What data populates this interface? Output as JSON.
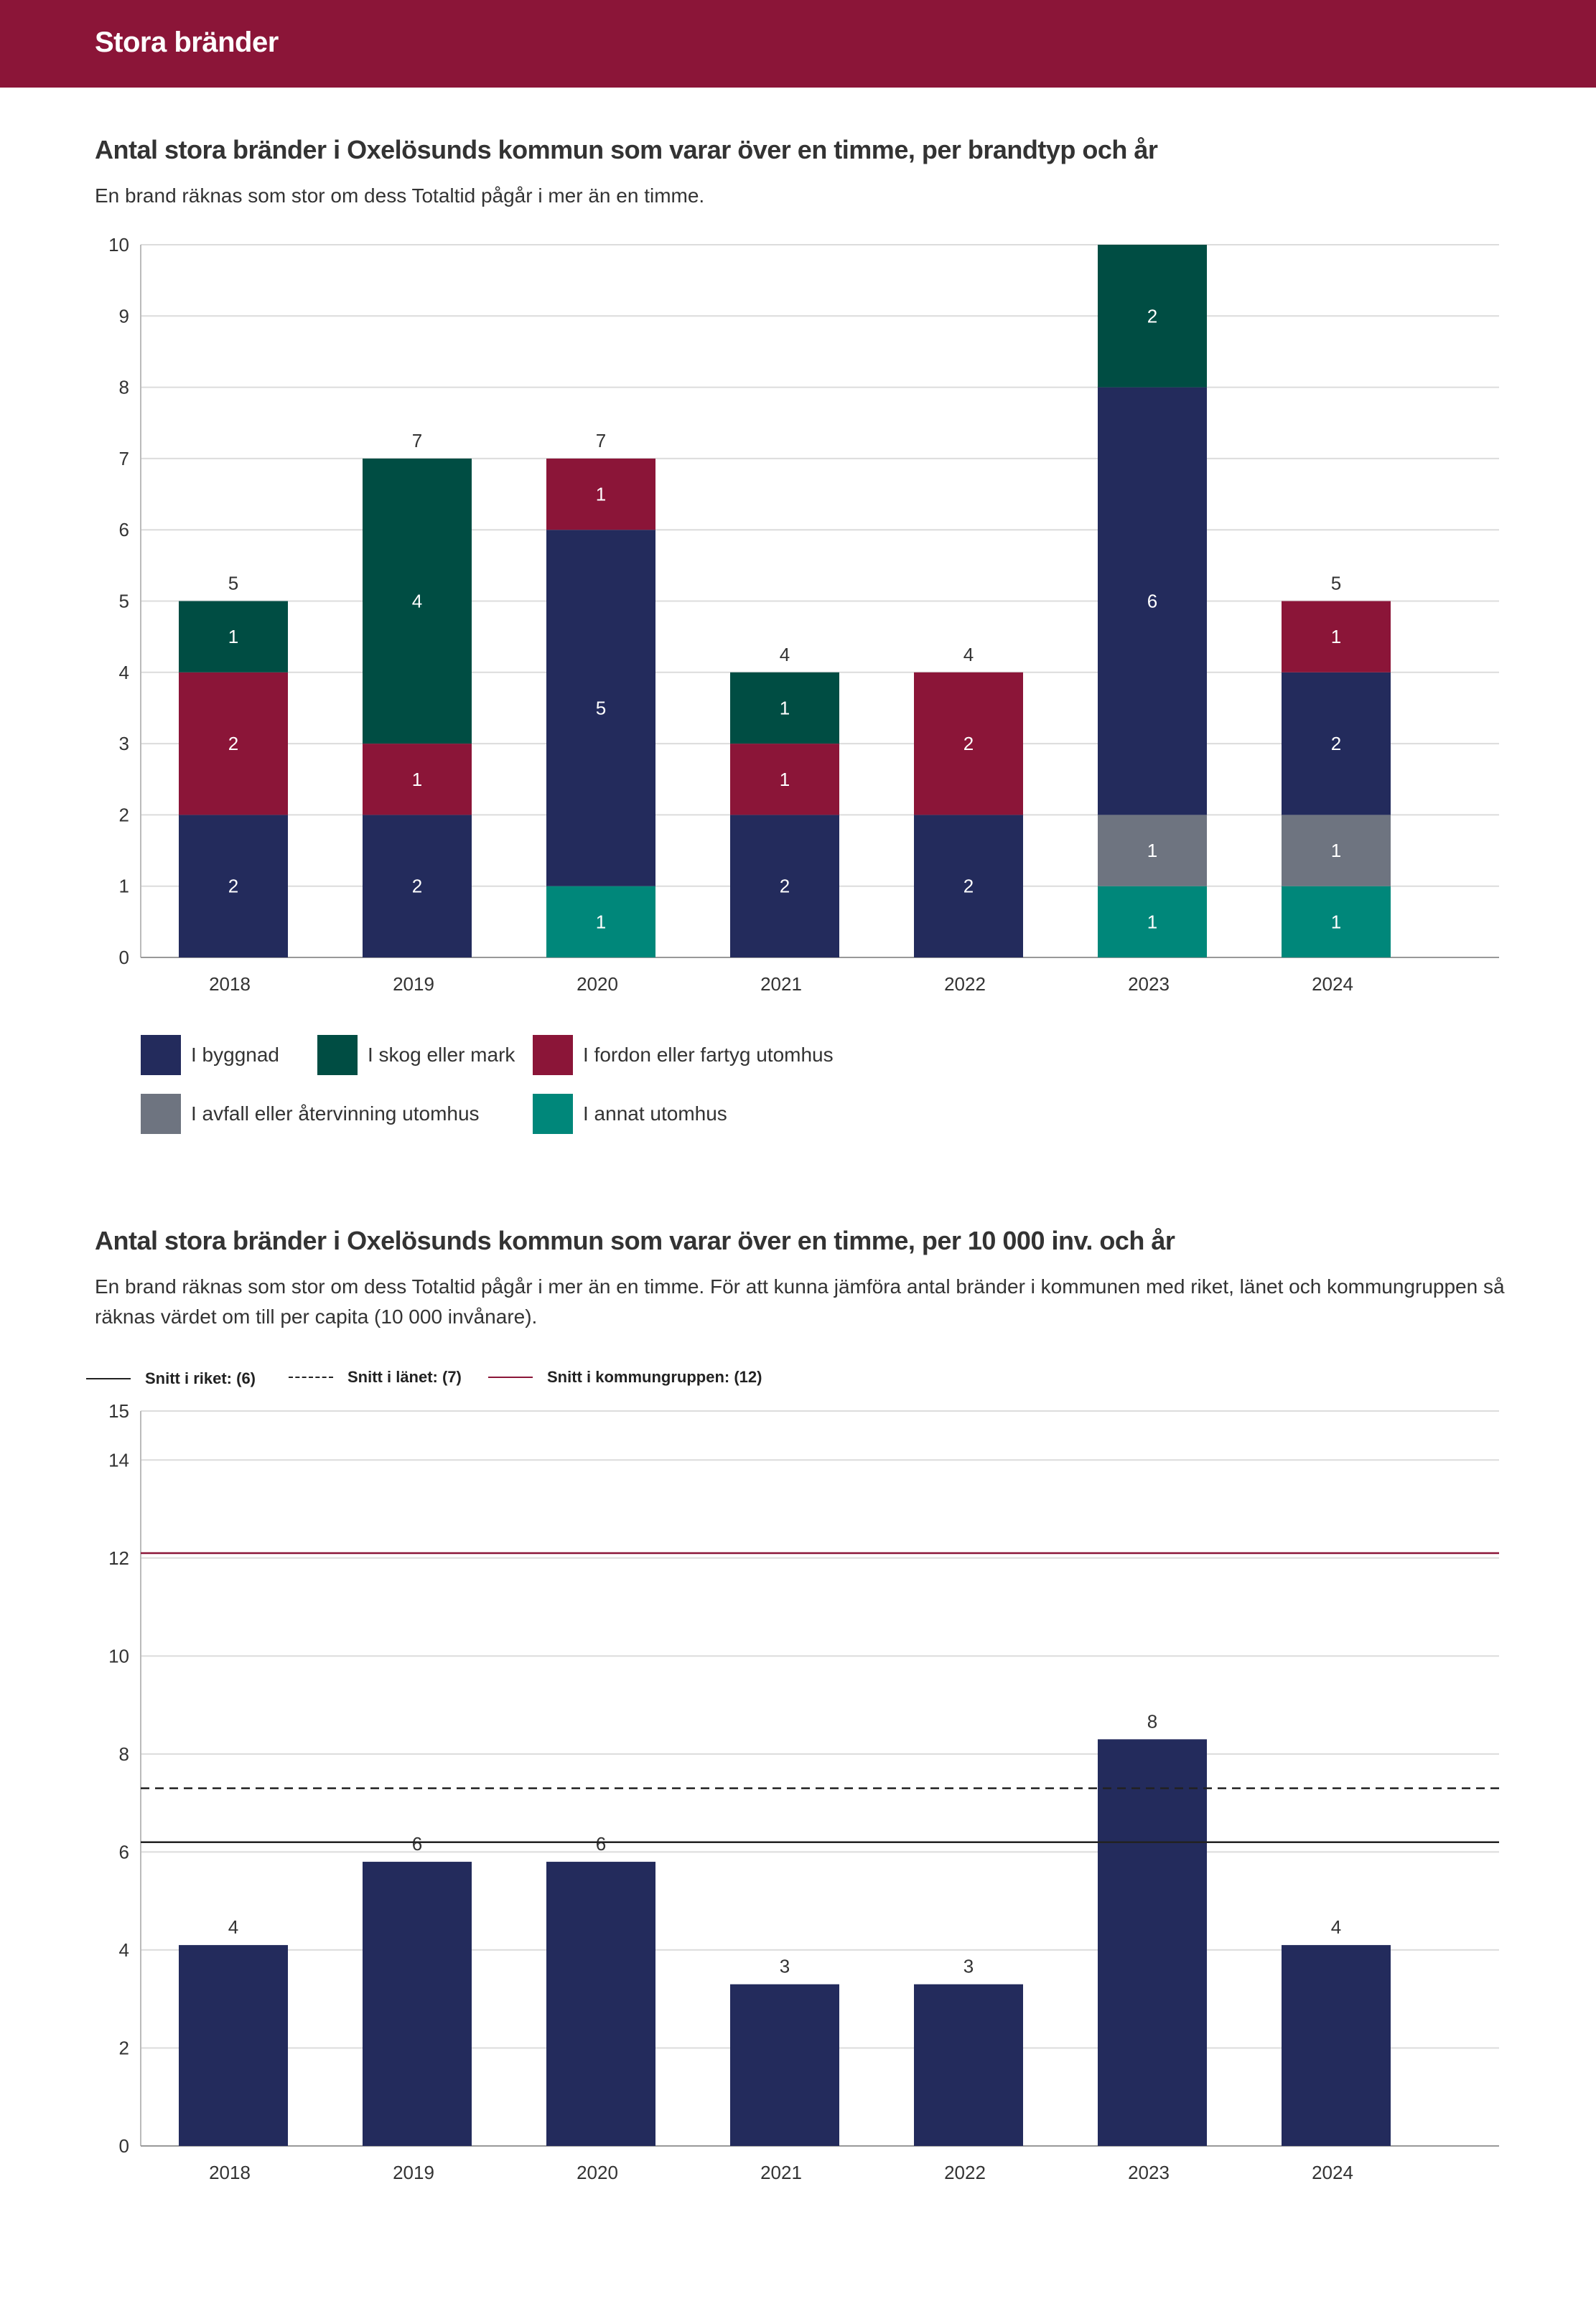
{
  "header": {
    "title": "Stora bränder"
  },
  "chart1": {
    "title": "Antal stora bränder i Oxelösunds kommun som varar över en timme, per brandtyp och år",
    "subtitle": "En brand räknas som stor om dess Totaltid pågår i mer än en timme."
  },
  "chart2": {
    "title": "Antal stora bränder i Oxelösunds kommun som varar över en timme, per 10 000 inv. och år",
    "subtitle": "En brand räknas som stor om dess Totaltid pågår i mer än en timme. För att kunna jämföra antal bränder i kommunen med riket, länet och kommungruppen så räknas värdet om till per capita (10 000 invånare)."
  },
  "chart_data": [
    {
      "type": "bar",
      "stacked": true,
      "categories": [
        "2018",
        "2019",
        "2020",
        "2021",
        "2022",
        "2023",
        "2024"
      ],
      "series": [
        {
          "name": "I annat utomhus",
          "color": "#00877a",
          "values": [
            0,
            0,
            1,
            0,
            0,
            1,
            1
          ]
        },
        {
          "name": "I avfall eller återvinning utomhus",
          "color": "#6e7480",
          "values": [
            0,
            0,
            0,
            0,
            0,
            1,
            1
          ]
        },
        {
          "name": "I byggnad",
          "color": "#232b5c",
          "values": [
            2,
            2,
            5,
            2,
            2,
            6,
            2
          ]
        },
        {
          "name": "I fordon eller fartyg utomhus",
          "color": "#8b1538",
          "values": [
            2,
            1,
            1,
            1,
            2,
            0,
            1
          ]
        },
        {
          "name": "I skog eller mark",
          "color": "#004d43",
          "values": [
            1,
            4,
            0,
            1,
            0,
            2,
            0
          ]
        }
      ],
      "totals": [
        5,
        7,
        7,
        4,
        4,
        10,
        5
      ],
      "show_total_labels": [
        true,
        true,
        true,
        true,
        true,
        false,
        true
      ],
      "yticks": [
        0,
        1,
        2,
        3,
        4,
        5,
        6,
        7,
        8,
        9,
        10
      ],
      "ylim": [
        0,
        10
      ],
      "legend": [
        {
          "label": "I byggnad",
          "color": "#232b5c"
        },
        {
          "label": "I skog eller mark",
          "color": "#004d43"
        },
        {
          "label": "I fordon eller fartyg utomhus",
          "color": "#8b1538"
        },
        {
          "label": "I avfall eller återvinning utomhus",
          "color": "#6e7480"
        },
        {
          "label": "I annat utomhus",
          "color": "#00877a"
        }
      ]
    },
    {
      "type": "bar",
      "categories": [
        "2018",
        "2019",
        "2020",
        "2021",
        "2022",
        "2023",
        "2024"
      ],
      "values": [
        4.1,
        5.8,
        5.8,
        3.3,
        3.3,
        8.3,
        4.1
      ],
      "value_labels": [
        "4",
        "6",
        "6",
        "3",
        "3",
        "8",
        "4"
      ],
      "bar_color": "#232b5c",
      "yticks": [
        0,
        2,
        4,
        6,
        8,
        10,
        12,
        14,
        15
      ],
      "ylim": [
        0,
        15
      ],
      "reference_lines": [
        {
          "label": "Snitt i riket: (6)",
          "value": 6.2,
          "color": "#222222",
          "style": "solid"
        },
        {
          "label": "Snitt i länet: (7)",
          "value": 7.3,
          "color": "#222222",
          "style": "dashed"
        },
        {
          "label": "Snitt i kommungruppen: (12)",
          "value": 12.1,
          "color": "#8b1538",
          "style": "solid"
        }
      ]
    }
  ]
}
